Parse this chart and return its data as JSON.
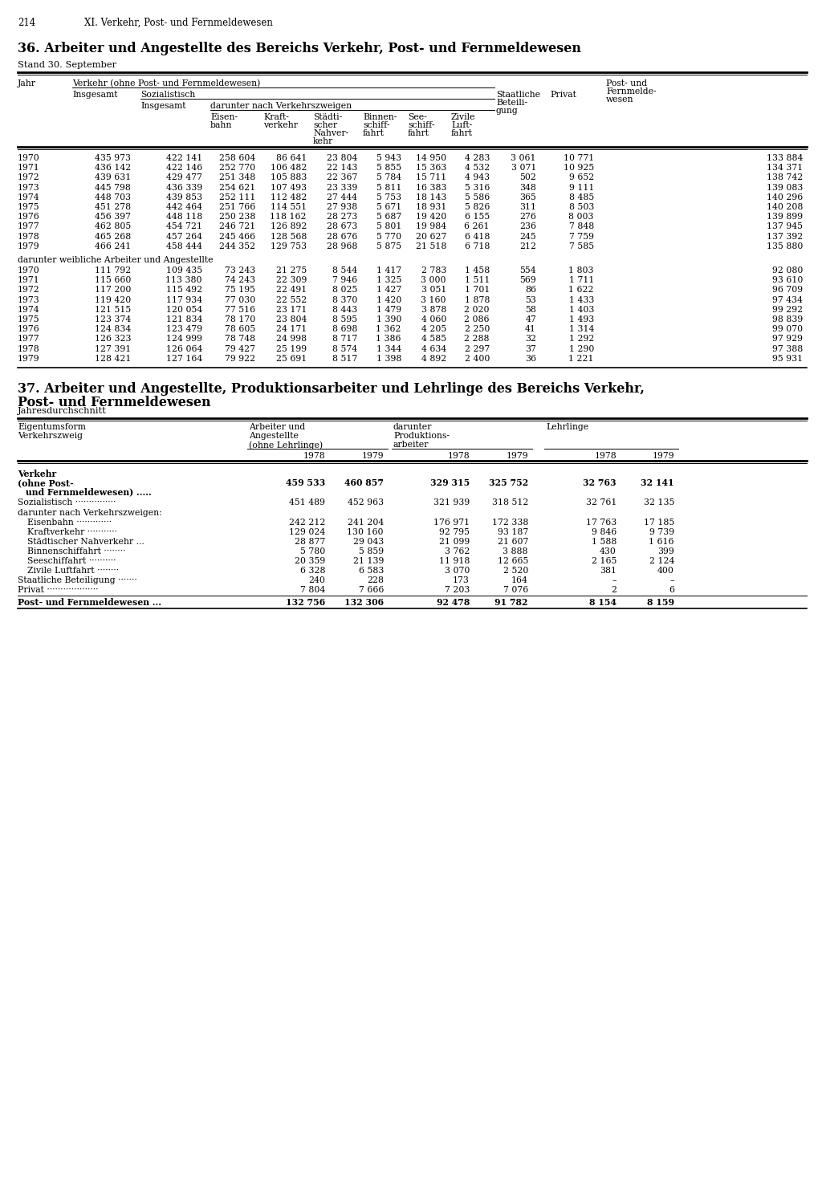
{
  "page_num": "214",
  "header": "XI. Verkehr, Post- und Fernmeldewesen",
  "table36_title": "36. Arbeiter und Angestellte des Bereichs Verkehr, Post- und Fernmeldewesen",
  "table36_subtitle": "Stand 30. September",
  "table37_title_line1": "37. Arbeiter und Angestellte, Produktionsarbeiter und Lehrlinge des Bereichs Verkehr,",
  "table37_title_line2": "Post- und Fernmeldewesen",
  "table37_subtitle": "Jahresdurchschnitt",
  "data36_main": [
    [
      1970,
      435973,
      422141,
      258604,
      86641,
      23804,
      5943,
      14950,
      4283,
      3061,
      10771,
      133884
    ],
    [
      1971,
      436142,
      422146,
      252770,
      106482,
      22143,
      5855,
      15363,
      4532,
      3071,
      10925,
      134371
    ],
    [
      1972,
      439631,
      429477,
      251348,
      105883,
      22367,
      5784,
      15711,
      4943,
      502,
      9652,
      138742
    ],
    [
      1973,
      445798,
      436339,
      254621,
      107493,
      23339,
      5811,
      16383,
      5316,
      348,
      9111,
      139083
    ],
    [
      1974,
      448703,
      439853,
      252111,
      112482,
      27444,
      5753,
      18143,
      5586,
      365,
      8485,
      140296
    ],
    [
      1975,
      451278,
      442464,
      251766,
      114551,
      27938,
      5671,
      18931,
      5826,
      311,
      8503,
      140208
    ],
    [
      1976,
      456397,
      448118,
      250238,
      118162,
      28273,
      5687,
      19420,
      6155,
      276,
      8003,
      139899
    ],
    [
      1977,
      462805,
      454721,
      246721,
      126892,
      28673,
      5801,
      19984,
      6261,
      236,
      7848,
      137945
    ],
    [
      1978,
      465268,
      457264,
      245466,
      128568,
      28676,
      5770,
      20627,
      6418,
      245,
      7759,
      137392
    ],
    [
      1979,
      466241,
      458444,
      244352,
      129753,
      28968,
      5875,
      21518,
      6718,
      212,
      7585,
      135880
    ]
  ],
  "subsection_label": "darunter weibliche Arbeiter und Angestellte",
  "data36_female": [
    [
      1970,
      111792,
      109435,
      73243,
      21275,
      8544,
      1417,
      2783,
      1458,
      554,
      1803,
      92080
    ],
    [
      1971,
      115660,
      113380,
      74243,
      22309,
      7946,
      1325,
      3000,
      1511,
      569,
      1711,
      93610
    ],
    [
      1972,
      117200,
      115492,
      75195,
      22491,
      8025,
      1427,
      3051,
      1701,
      86,
      1622,
      96709
    ],
    [
      1973,
      119420,
      117934,
      77030,
      22552,
      8370,
      1420,
      3160,
      1878,
      53,
      1433,
      97434
    ],
    [
      1974,
      121515,
      120054,
      77516,
      23171,
      8443,
      1479,
      3878,
      2020,
      58,
      1403,
      99292
    ],
    [
      1975,
      123374,
      121834,
      78170,
      23804,
      8595,
      1390,
      4060,
      2086,
      47,
      1493,
      98839
    ],
    [
      1976,
      124834,
      123479,
      78605,
      24171,
      8698,
      1362,
      4205,
      2250,
      41,
      1314,
      99070
    ],
    [
      1977,
      126323,
      124999,
      78748,
      24998,
      8717,
      1386,
      4585,
      2288,
      32,
      1292,
      97929
    ],
    [
      1978,
      127391,
      126064,
      79427,
      25199,
      8574,
      1344,
      4634,
      2297,
      37,
      1290,
      97388
    ],
    [
      1979,
      128421,
      127164,
      79922,
      25691,
      8517,
      1398,
      4892,
      2400,
      36,
      1221,
      95931
    ]
  ],
  "data37": [
    [
      "Verkehr",
      "(ohne Post-",
      "und Fernmeldewesen) .....",
      "459 533",
      "460 857",
      "329 315",
      "325 752",
      "32 763",
      "32 141",
      true
    ],
    [
      "Sozialistisch ··············",
      "451 489",
      "452 963",
      "321 939",
      "318 512",
      "32 761",
      "32 135",
      false
    ],
    [
      "darunter nach Verkehrszweigen:",
      "",
      "",
      "",
      "",
      "",
      "",
      false
    ],
    [
      "Eisenbahn ···········",
      "242 212",
      "241 204",
      "176 971",
      "172 338",
      "17 763",
      "17 185",
      false
    ],
    [
      "Kraftverkehr ·········",
      "129 024",
      "130 160",
      "92 795",
      "93 187",
      "9 846",
      "9 739",
      false
    ],
    [
      "Städtischer Nahverkehr ...",
      "28 877",
      "29 043",
      "21 099",
      "21 607",
      "1 588",
      "1 616",
      false
    ],
    [
      "Binnenschiffahrt ········",
      "5 780",
      "5 859",
      "3 762",
      "3 888",
      "430",
      "399",
      false
    ],
    [
      "Seeschiffahrt ··········",
      "20 359",
      "21 139",
      "11 918",
      "12 665",
      "2 165",
      "2 124",
      false
    ],
    [
      "Zivile Luftfahrt ········",
      "6 328",
      "6 583",
      "3 070",
      "2 520",
      "381",
      "400",
      false
    ],
    [
      "Staatliche Beteiligung ·······",
      "240",
      "228",
      "173",
      "164",
      "–",
      "–",
      false
    ],
    [
      "Privat ···················",
      "7 804",
      "7 666",
      "7 203",
      "7 076",
      "2",
      "6",
      false
    ],
    [
      "Post- und Fernmeldewesen ...",
      "132 756",
      "132 306",
      "92 478",
      "91 782",
      "8 154",
      "8 159",
      true
    ]
  ]
}
